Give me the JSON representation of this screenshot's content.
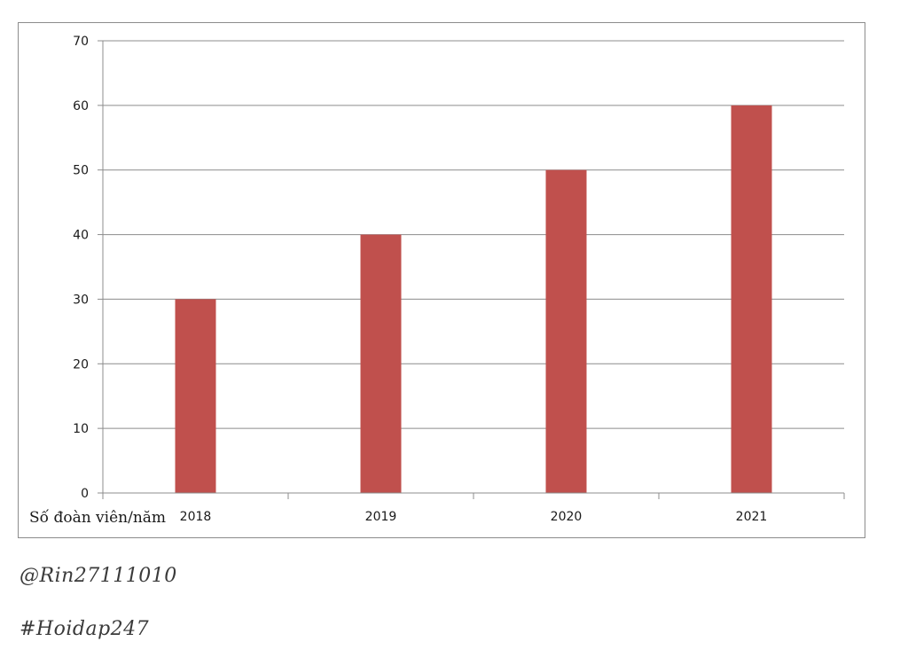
{
  "chart_data": {
    "type": "bar",
    "categories": [
      "2018",
      "2019",
      "2020",
      "2021"
    ],
    "values": [
      30,
      40,
      50,
      60
    ],
    "title": "",
    "xlabel": "Số đoàn viên/năm",
    "ylabel": "",
    "ylim": [
      0,
      70
    ],
    "yticks": [
      "0",
      "10",
      "20",
      "30",
      "40",
      "50",
      "60",
      "70"
    ],
    "grid": true,
    "legend": "none",
    "bar_color": "#c0504d",
    "grid_color": "#8c8c8c"
  },
  "watermarks": {
    "handle": "@Rin27111010",
    "tag": "#Hoidap247"
  }
}
